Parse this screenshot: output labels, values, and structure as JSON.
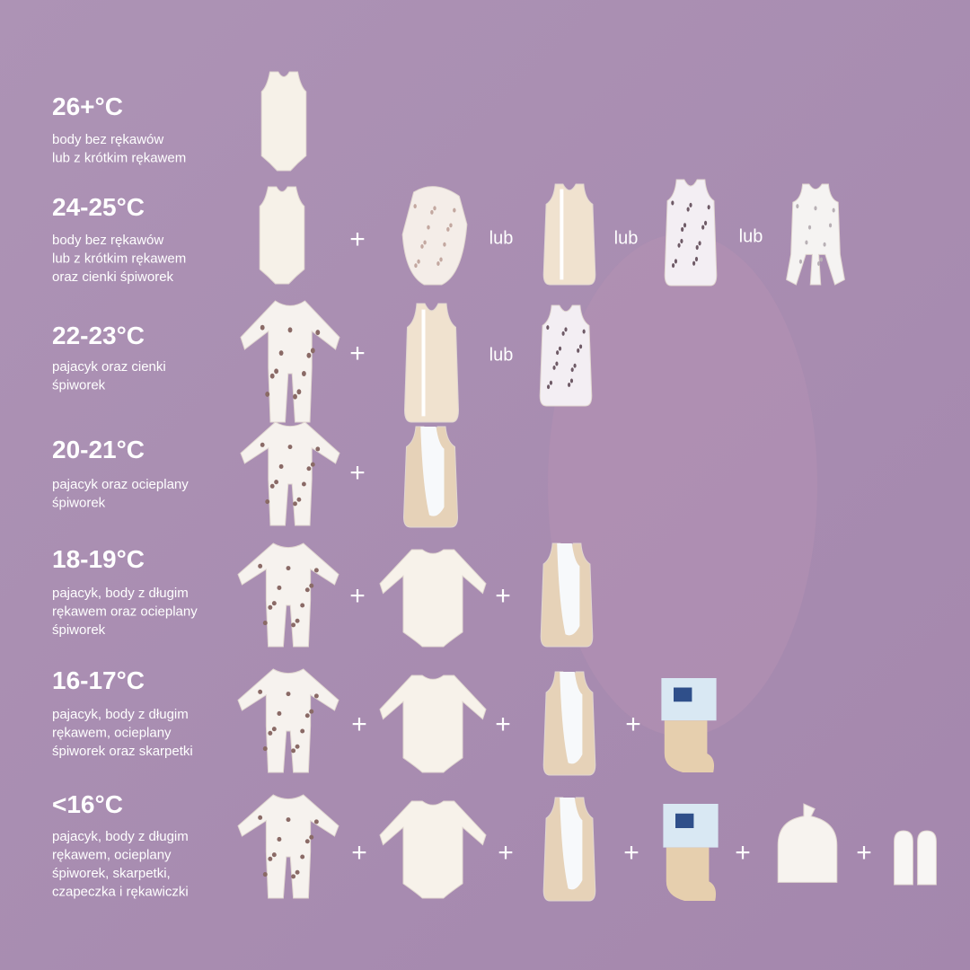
{
  "rows": [
    {
      "temperature": "26+°C",
      "description": [
        "body bez rękawów",
        "lub z krótkim rękawem"
      ],
      "links": []
    },
    {
      "temperature": "24-25°C",
      "description": [
        "body bez rękawów",
        "lub z krótkim rękawem",
        "oraz cienki śpiworek"
      ],
      "links": [
        "+",
        "lub",
        "lub",
        "lub"
      ]
    },
    {
      "temperature": "22-23°C",
      "description": [
        "pajacyk oraz cienki",
        "śpiworek"
      ],
      "links": [
        "+",
        "lub"
      ]
    },
    {
      "temperature": "20-21°C",
      "description": [
        "pajacyk oraz ocieplany",
        "śpiworek"
      ],
      "links": [
        "+"
      ]
    },
    {
      "temperature": "18-19°C",
      "description": [
        "pajacyk, body z długim",
        "rękawem oraz ocieplany",
        "śpiworek"
      ],
      "links": [
        "+",
        "+"
      ]
    },
    {
      "temperature": "16-17°C",
      "description": [
        "pajacyk, body z długim",
        "rękawem, ocieplany",
        "śpiworek oraz skarpetki"
      ],
      "links": [
        "+",
        "+",
        "+"
      ]
    },
    {
      "temperature": "<16°C",
      "description": [
        "pajacyk, body z długim",
        "rękawem, ocieplany",
        "śpiworek, skarpetki,",
        "czapeczka i rękawiczki"
      ],
      "links": [
        "+",
        "+",
        "+",
        "+",
        "+"
      ]
    }
  ]
}
